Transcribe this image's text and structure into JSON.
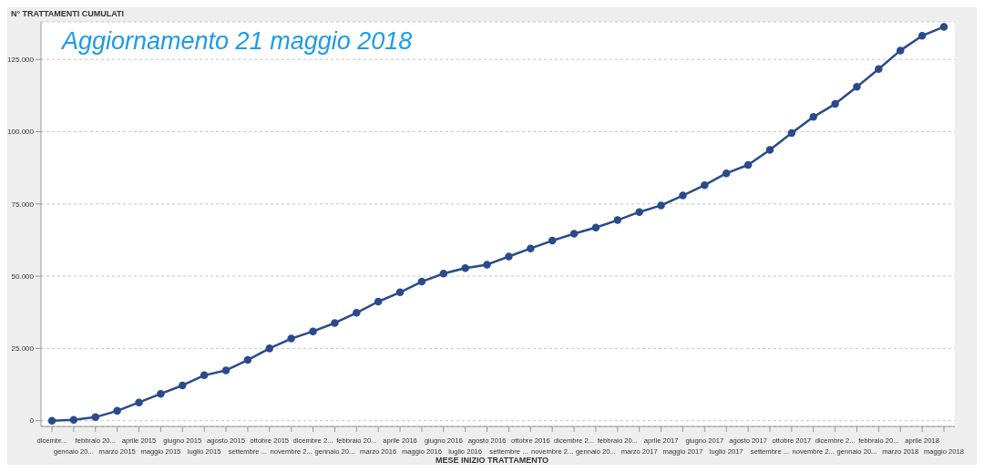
{
  "chart_data": {
    "type": "line",
    "ylabel": "N° TRATTAMENTI CUMULATI",
    "xlabel": "MESE INIZIO TRATTAMENTO",
    "annotations": [
      "Aggiornamento 21 maggio 2018"
    ],
    "categories": [
      "dicembr...",
      "gennaio 20...",
      "febbraio 20...",
      "marzo 2015",
      "aprile 2015",
      "maggio 2015",
      "giugno 2015",
      "luglio 2015",
      "agosto 2015",
      "settembre ...",
      "ottobre 2015",
      "novembre 2...",
      "dicembre 2...",
      "gennaio 20...",
      "febbraio 20...",
      "marzo 2016",
      "aprile 2016",
      "maggio 2016",
      "giugno 2016",
      "luglio 2016",
      "agosto 2016",
      "settembre ...",
      "ottobre 2016",
      "novembre 2...",
      "dicembre 2...",
      "gennaio 20...",
      "febbraio 20...",
      "marzo 2017",
      "aprile 2017",
      "maggio 2017",
      "giugno 2017",
      "luglio 2017",
      "agosto 2017",
      "settembre ...",
      "ottobre 2017",
      "novembre 2...",
      "dicembre 2...",
      "gennaio 20...",
      "febbraio 20...",
      "marzo 2018",
      "aprile 2018",
      "maggio 2018"
    ],
    "series": [
      {
        "color": "#2b4a8c",
        "values": [
          0,
          300,
          1200,
          3400,
          6300,
          9300,
          12200,
          15700,
          17400,
          21000,
          25000,
          28400,
          30900,
          33800,
          37300,
          41200,
          44400,
          48100,
          50900,
          52800,
          54000,
          56800,
          59600,
          62300,
          64700,
          66800,
          69400,
          72200,
          74500,
          77900,
          81500,
          85600,
          88500,
          93700,
          99500,
          105100,
          109600,
          115500,
          121700,
          128100,
          133200,
          136300
        ]
      }
    ],
    "ylim": [
      -2000,
      138000
    ],
    "yticks": [
      0,
      {
        "value": 25000,
        "label": "25.000"
      },
      {
        "value": 50000,
        "label": "50.000"
      },
      {
        "value": 75000,
        "label": "75.000"
      },
      {
        "value": 100000,
        "label": "100.000"
      },
      {
        "value": 125000,
        "label": "125.000"
      }
    ],
    "grid": "y",
    "legend": false,
    "marker": "circle",
    "line_style": "solid"
  }
}
